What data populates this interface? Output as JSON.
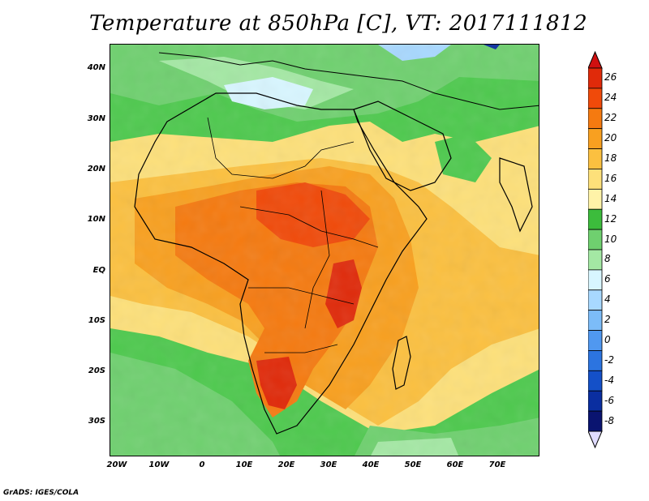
{
  "title": "Temperature at 850hPa [C], VT: 2017111812",
  "credit": "GrADS: IGES/COLA",
  "lat_labels": [
    "40N",
    "30N",
    "20N",
    "10N",
    "EQ",
    "10S",
    "20S",
    "30S"
  ],
  "lon_labels": [
    "20W",
    "10W",
    "0",
    "10E",
    "20E",
    "30E",
    "40E",
    "50E",
    "60E",
    "70E"
  ],
  "colorbar": {
    "labels": [
      "26",
      "24",
      "22",
      "20",
      "18",
      "16",
      "14",
      "12",
      "10",
      "8",
      "6",
      "4",
      "2",
      "0",
      "-2",
      "-4",
      "-6",
      "-8"
    ],
    "colors": [
      "#e02a0a",
      "#f04a0a",
      "#f57a10",
      "#f8a020",
      "#fbc040",
      "#fde07a",
      "#fff3a8",
      "#3cbc3c",
      "#6fd06f",
      "#a4e8a4",
      "#d8f6ff",
      "#a8d8ff",
      "#7cbcf8",
      "#5098f0",
      "#2c74e0",
      "#1450c8",
      "#0a2ea0",
      "#0a1470"
    ]
  }
}
